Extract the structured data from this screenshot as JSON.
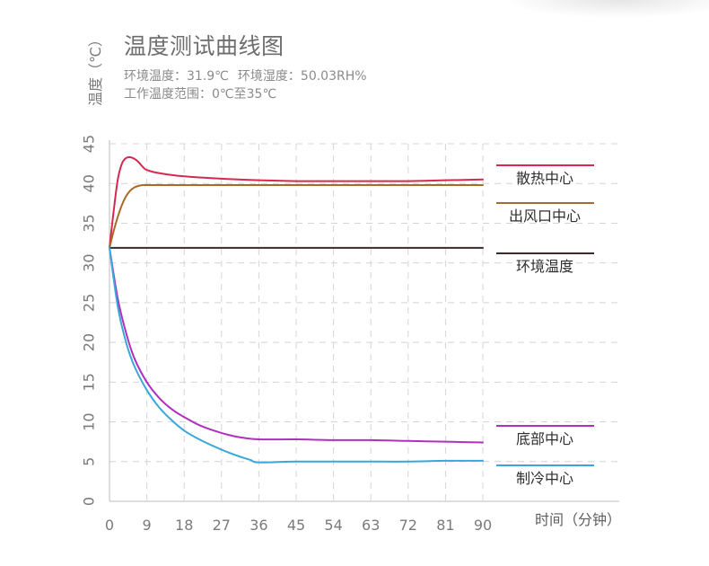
{
  "chart_data": {
    "type": "line",
    "title": "温度测试曲线图",
    "subtitle_lines": [
      "环境温度：31.9℃",
      "环境湿度：50.03RH%",
      "工作温度范围：0℃至35℃"
    ],
    "ylabel": "温度（℃）",
    "xlabel": "时间（分钟）",
    "xlim": [
      0,
      90
    ],
    "ylim": [
      0,
      45
    ],
    "x_ticks": [
      0,
      9,
      18,
      27,
      36,
      45,
      54,
      63,
      72,
      81,
      90
    ],
    "y_ticks": [
      0,
      5,
      10,
      15,
      20,
      25,
      30,
      35,
      40,
      45
    ],
    "grid": true,
    "legend": "right",
    "series": [
      {
        "name": "散热中心",
        "color": "#d8284f",
        "x": [
          0,
          1,
          2,
          3,
          4,
          5,
          6,
          7,
          8,
          9,
          12,
          18,
          27,
          36,
          45,
          54,
          63,
          72,
          81,
          90
        ],
        "y": [
          31.9,
          36.5,
          40.5,
          42.5,
          43.2,
          43.3,
          43.1,
          42.7,
          42.1,
          41.7,
          41.3,
          40.9,
          40.6,
          40.4,
          40.3,
          40.3,
          40.3,
          40.3,
          40.4,
          40.5
        ]
      },
      {
        "name": "出风口中心",
        "color": "#a86a2a",
        "x": [
          0,
          1,
          2,
          3,
          4,
          5,
          6,
          7,
          8,
          9,
          18,
          27,
          36,
          45,
          54,
          63,
          72,
          81,
          90
        ],
        "y": [
          31.9,
          34.0,
          35.8,
          37.3,
          38.4,
          39.1,
          39.5,
          39.7,
          39.8,
          39.8,
          39.8,
          39.8,
          39.8,
          39.8,
          39.8,
          39.8,
          39.8,
          39.8,
          39.8
        ]
      },
      {
        "name": "环境温度",
        "color": "#3c2a26",
        "x": [
          0,
          90
        ],
        "y": [
          31.9,
          31.9
        ]
      },
      {
        "name": "底部中心",
        "color": "#b030c0",
        "x": [
          0,
          2,
          4,
          6,
          9,
          12,
          15,
          18,
          22,
          27,
          31,
          36,
          45,
          54,
          63,
          72,
          81,
          90
        ],
        "y": [
          31.9,
          25.5,
          21.2,
          18.0,
          15.0,
          13.0,
          11.6,
          10.6,
          9.5,
          8.6,
          8.1,
          7.8,
          7.8,
          7.7,
          7.7,
          7.6,
          7.5,
          7.4
        ]
      },
      {
        "name": "制冷中心",
        "color": "#3aa7da",
        "x": [
          0,
          2,
          4,
          6,
          9,
          12,
          15,
          18,
          22,
          27,
          31,
          34,
          36,
          45,
          54,
          63,
          72,
          81,
          90
        ],
        "y": [
          31.9,
          24.5,
          20.0,
          17.0,
          14.0,
          11.8,
          10.2,
          8.9,
          7.7,
          6.5,
          5.7,
          5.2,
          4.9,
          5.0,
          5.0,
          5.0,
          5.0,
          5.1,
          5.1
        ]
      }
    ]
  }
}
